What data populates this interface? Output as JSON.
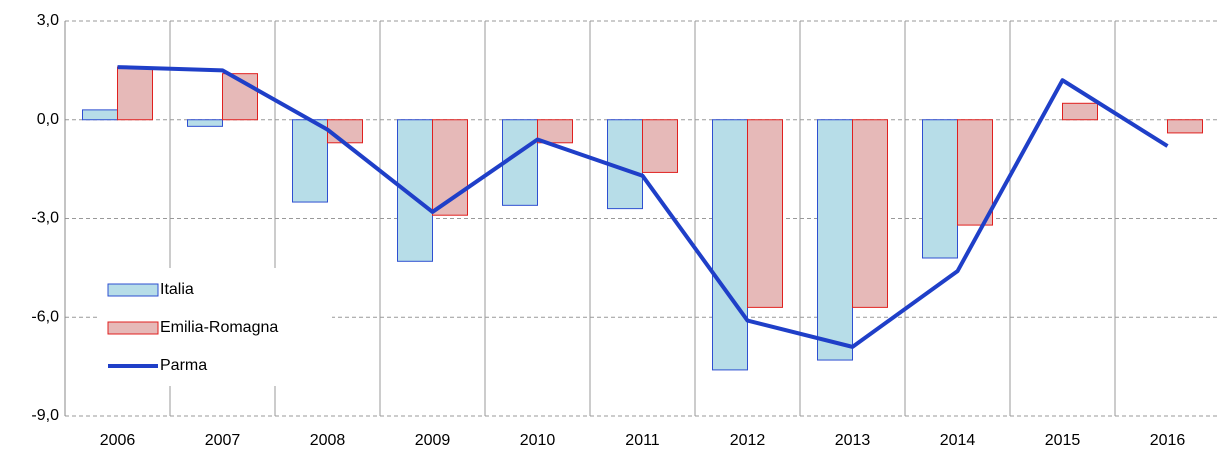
{
  "chart_data": {
    "type": "bar_line",
    "categories": [
      "2006",
      "2007",
      "2008",
      "2009",
      "2010",
      "2011",
      "2012",
      "2013",
      "2014",
      "2015",
      "2016"
    ],
    "series": [
      {
        "name": "Italia",
        "type": "bar",
        "color": "#b7dde8",
        "edge": "#2e4fd1",
        "values": [
          0.3,
          -0.2,
          -2.5,
          -4.3,
          -2.6,
          -2.7,
          -7.6,
          -7.3,
          -4.2,
          null,
          null
        ]
      },
      {
        "name": "Emilia-Romagna",
        "type": "bar",
        "color": "#e6b9b8",
        "edge": "#e0201f",
        "values": [
          1.6,
          1.4,
          -0.7,
          -2.9,
          -0.7,
          -1.6,
          -5.7,
          -5.7,
          -3.2,
          0.5,
          -0.4
        ]
      },
      {
        "name": "Parma",
        "type": "line",
        "color": "#1f3fc8",
        "values": [
          1.6,
          1.5,
          -0.3,
          -2.8,
          -0.6,
          -1.7,
          -6.1,
          -6.9,
          -4.6,
          1.2,
          -0.8
        ]
      }
    ],
    "ylim": [
      -9,
      3
    ],
    "yticks": [
      {
        "value": 3,
        "label": "3,0"
      },
      {
        "value": 0,
        "label": "0,0"
      },
      {
        "value": -3,
        "label": "-3,0"
      },
      {
        "value": -6,
        "label": "-6,0"
      },
      {
        "value": -9,
        "label": "-9,0"
      }
    ],
    "grid": true,
    "legend": "lower left"
  }
}
